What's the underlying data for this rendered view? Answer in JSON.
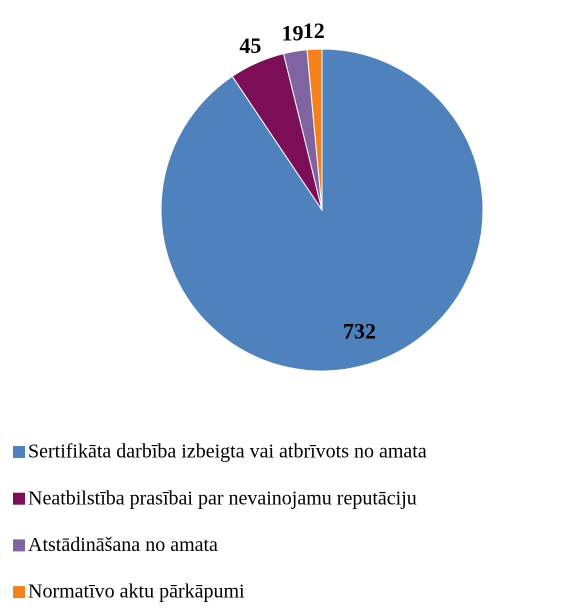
{
  "chart_data": {
    "type": "pie",
    "categories": [
      "Sertifikāta darbība izbeigta vai atbrīvots no amata",
      "Neatbilstība prasībai par nevainojamu reputāciju",
      "Atstādināšana no amata",
      "Normatīvo aktu pārkāpumi"
    ],
    "values": [
      732,
      45,
      19,
      12
    ],
    "colors": [
      "#4f81bd",
      "#7c0e58",
      "#8064a2",
      "#f3821c"
    ],
    "legend": "bottom"
  }
}
